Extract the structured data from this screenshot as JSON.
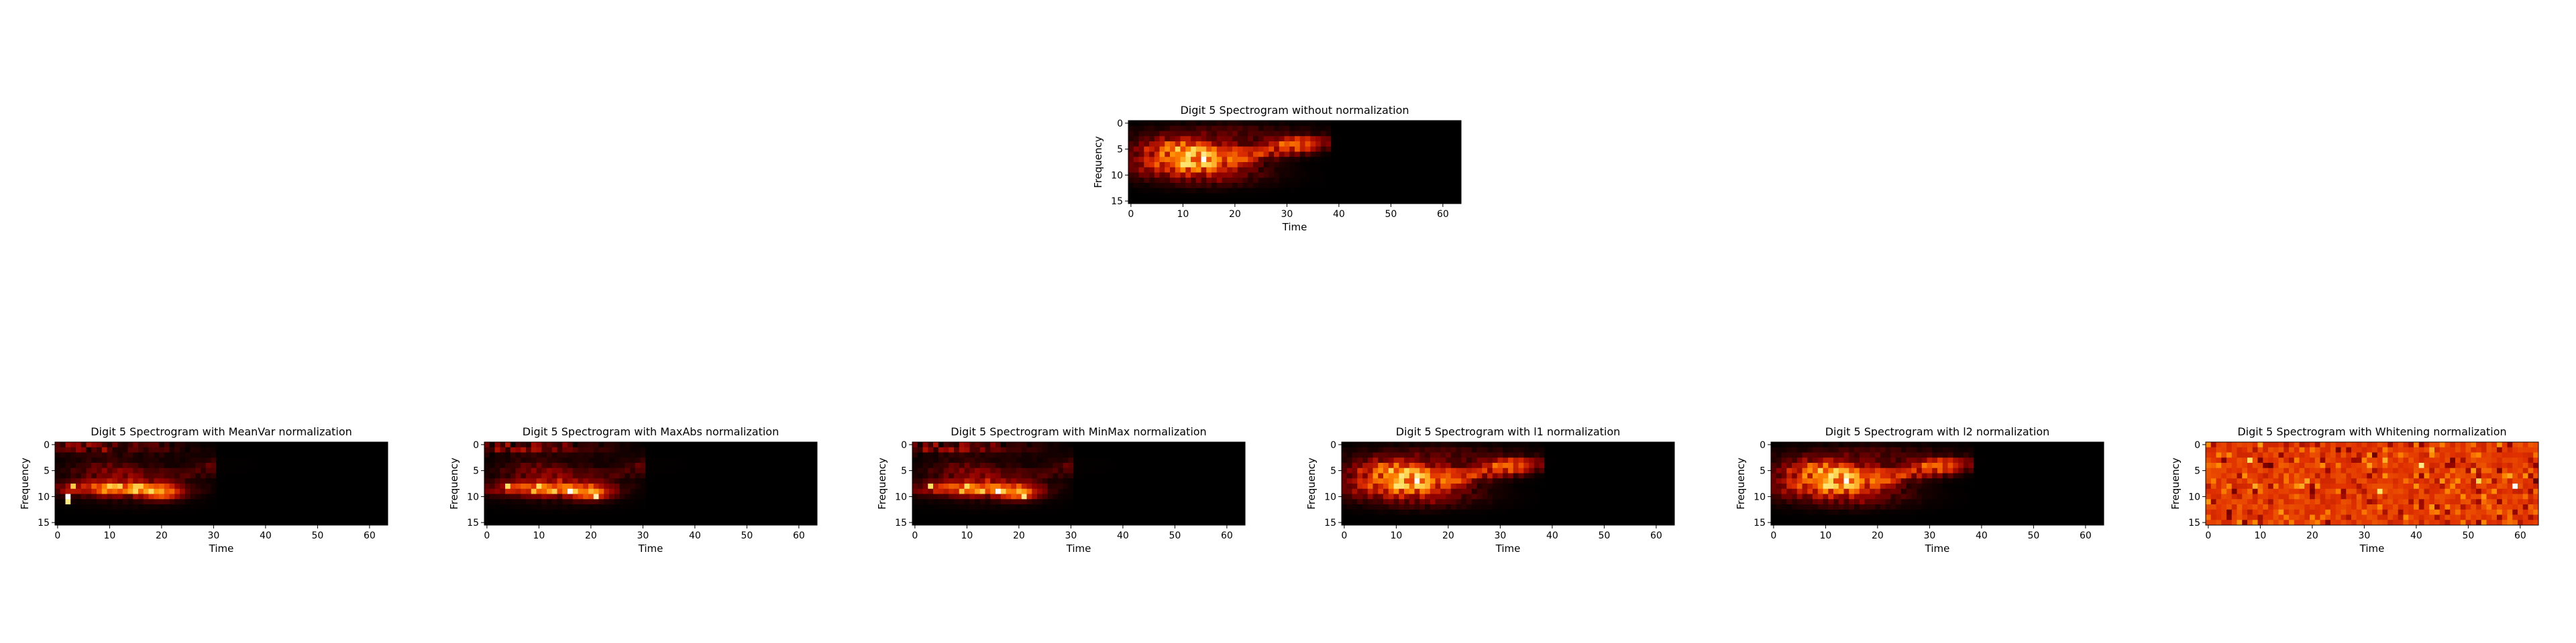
{
  "figure": {
    "background": "#ffffff",
    "colormap": "hot",
    "colormap_stops": [
      "#000000",
      "#8b0000",
      "#e03000",
      "#ff8a00",
      "#ffe060",
      "#ffffff"
    ]
  },
  "chart_data": [
    {
      "type": "heatmap",
      "title": "Digit 5 Spectrogram without normalization",
      "xlabel": "Time",
      "ylabel": "Frequency",
      "xticks": [
        0,
        10,
        20,
        30,
        40,
        50,
        60
      ],
      "yticks": [
        0,
        5,
        10,
        15
      ],
      "xlim": [
        0,
        63
      ],
      "ylim": [
        15,
        0
      ],
      "grid": false,
      "variant": "raw"
    },
    {
      "type": "heatmap",
      "title": "Digit 5 Spectrogram with MeanVar normalization",
      "xlabel": "Time",
      "ylabel": "Frequency",
      "xticks": [
        0,
        10,
        20,
        30,
        40,
        50,
        60
      ],
      "yticks": [
        0,
        5,
        10,
        15
      ],
      "xlim": [
        0,
        63
      ],
      "ylim": [
        15,
        0
      ],
      "grid": false,
      "variant": "meanvar"
    },
    {
      "type": "heatmap",
      "title": "Digit 5 Spectrogram with MaxAbs normalization",
      "xlabel": "Time",
      "ylabel": "Frequency",
      "xticks": [
        0,
        10,
        20,
        30,
        40,
        50,
        60
      ],
      "yticks": [
        0,
        5,
        10,
        15
      ],
      "xlim": [
        0,
        63
      ],
      "ylim": [
        15,
        0
      ],
      "grid": false,
      "variant": "maxabs"
    },
    {
      "type": "heatmap",
      "title": "Digit 5 Spectrogram with MinMax normalization",
      "xlabel": "Time",
      "ylabel": "Frequency",
      "xticks": [
        0,
        10,
        20,
        30,
        40,
        50,
        60
      ],
      "yticks": [
        0,
        5,
        10,
        15
      ],
      "xlim": [
        0,
        63
      ],
      "ylim": [
        15,
        0
      ],
      "grid": false,
      "variant": "minmax"
    },
    {
      "type": "heatmap",
      "title": "Digit 5 Spectrogram with l1 normalization",
      "xlabel": "Time",
      "ylabel": "Frequency",
      "xticks": [
        0,
        10,
        20,
        30,
        40,
        50,
        60
      ],
      "yticks": [
        0,
        5,
        10,
        15
      ],
      "xlim": [
        0,
        63
      ],
      "ylim": [
        15,
        0
      ],
      "grid": false,
      "variant": "l1"
    },
    {
      "type": "heatmap",
      "title": "Digit 5 Spectrogram with l2 normalization",
      "xlabel": "Time",
      "ylabel": "Frequency",
      "xticks": [
        0,
        10,
        20,
        30,
        40,
        50,
        60
      ],
      "yticks": [
        0,
        5,
        10,
        15
      ],
      "xlim": [
        0,
        63
      ],
      "ylim": [
        15,
        0
      ],
      "grid": false,
      "variant": "l2"
    },
    {
      "type": "heatmap",
      "title": "Digit 5 Spectrogram with Whitening normalization",
      "xlabel": "Time",
      "ylabel": "Frequency",
      "xticks": [
        0,
        10,
        20,
        30,
        40,
        50,
        60
      ],
      "yticks": [
        0,
        5,
        10,
        15
      ],
      "xlim": [
        0,
        63
      ],
      "ylim": [
        15,
        0
      ],
      "grid": false,
      "variant": "whitening"
    }
  ]
}
